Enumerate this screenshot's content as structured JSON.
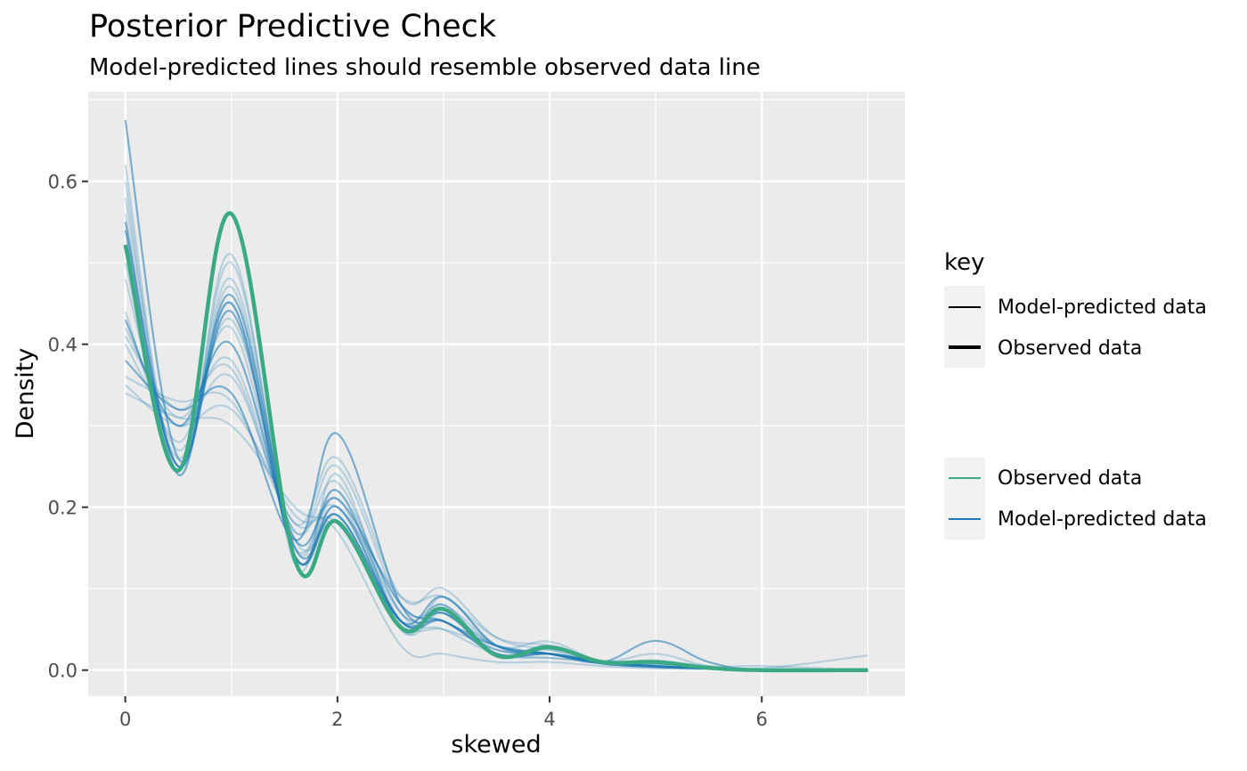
{
  "chart_data": {
    "type": "line",
    "title": "Posterior Predictive Check",
    "subtitle": "Model-predicted lines should resemble observed data line",
    "xlabel": "skewed",
    "ylabel": "Density",
    "xlim": [
      -0.35,
      7.35
    ],
    "ylim": [
      -0.032,
      0.71
    ],
    "x_ticks": [
      0,
      2,
      4,
      6
    ],
    "x_tick_labels": [
      "0",
      "2",
      "4",
      "6"
    ],
    "y_ticks": [
      0.0,
      0.2,
      0.4,
      0.6
    ],
    "y_tick_labels": [
      "0.0",
      "0.2",
      "0.4",
      "0.6"
    ],
    "grid": true,
    "legend_position": "right",
    "legend": {
      "linetype": {
        "title": "key",
        "items": [
          "Model-predicted data",
          "Observed data"
        ]
      },
      "colour": {
        "items": [
          "Observed data",
          "Model-predicted data"
        ]
      }
    },
    "colors": {
      "observed": "#3aaa85",
      "predicted": "#1b7ab5",
      "panel": "#ebebeb",
      "grid": "#ffffff"
    },
    "observed": {
      "name": "Observed data",
      "x": [
        0,
        0.5,
        1.0,
        1.6,
        2.0,
        2.6,
        3.0,
        3.5,
        4.0,
        4.5,
        5.0,
        5.5,
        6.0,
        7.0
      ],
      "y": [
        0.522,
        0.245,
        0.56,
        0.135,
        0.182,
        0.052,
        0.075,
        0.018,
        0.028,
        0.01,
        0.01,
        0.003,
        0.0,
        0.0
      ]
    },
    "predicted": {
      "name": "Model-predicted data",
      "x": [
        0,
        0.5,
        1.0,
        1.6,
        2.0,
        2.6,
        3.0,
        3.5,
        4.0,
        4.5,
        5.0,
        5.5,
        6.0,
        7.0
      ],
      "series": [
        {
          "y": [
            0.675,
            0.26,
            0.45,
            0.14,
            0.2,
            0.06,
            0.07,
            0.02,
            0.02,
            0.01,
            0.005,
            0.002,
            0.0,
            0.0
          ]
        },
        {
          "y": [
            0.6,
            0.24,
            0.51,
            0.13,
            0.24,
            0.05,
            0.09,
            0.03,
            0.035,
            0.01,
            0.008,
            0.003,
            0.0,
            0.0
          ]
        },
        {
          "y": [
            0.58,
            0.25,
            0.48,
            0.15,
            0.22,
            0.06,
            0.08,
            0.02,
            0.03,
            0.01,
            0.005,
            0.002,
            0.0,
            0.0
          ]
        },
        {
          "y": [
            0.56,
            0.24,
            0.47,
            0.14,
            0.21,
            0.05,
            0.07,
            0.02,
            0.025,
            0.01,
            0.004,
            0.002,
            0.0,
            0.0
          ]
        },
        {
          "y": [
            0.54,
            0.25,
            0.46,
            0.15,
            0.19,
            0.06,
            0.06,
            0.02,
            0.02,
            0.01,
            0.005,
            0.002,
            0.0,
            0.0
          ]
        },
        {
          "y": [
            0.5,
            0.26,
            0.45,
            0.14,
            0.2,
            0.07,
            0.06,
            0.02,
            0.015,
            0.01,
            0.005,
            0.002,
            0.0,
            0.0
          ]
        },
        {
          "y": [
            0.48,
            0.27,
            0.43,
            0.16,
            0.18,
            0.06,
            0.07,
            0.03,
            0.02,
            0.01,
            0.01,
            0.002,
            0.0,
            0.0
          ]
        },
        {
          "y": [
            0.44,
            0.28,
            0.42,
            0.15,
            0.22,
            0.07,
            0.05,
            0.02,
            0.015,
            0.01,
            0.005,
            0.002,
            0.0,
            0.0
          ]
        },
        {
          "y": [
            0.43,
            0.3,
            0.4,
            0.16,
            0.21,
            0.08,
            0.06,
            0.025,
            0.02,
            0.008,
            0.004,
            0.002,
            0.0,
            0.0
          ]
        },
        {
          "y": [
            0.42,
            0.31,
            0.38,
            0.17,
            0.25,
            0.08,
            0.07,
            0.03,
            0.02,
            0.01,
            0.01,
            0.003,
            0.0,
            0.0
          ]
        },
        {
          "y": [
            0.41,
            0.32,
            0.37,
            0.17,
            0.23,
            0.07,
            0.08,
            0.03,
            0.02,
            0.01,
            0.008,
            0.003,
            0.0,
            0.0
          ]
        },
        {
          "y": [
            0.4,
            0.3,
            0.36,
            0.18,
            0.26,
            0.09,
            0.1,
            0.04,
            0.025,
            0.01,
            0.02,
            0.005,
            0.005,
            0.0
          ]
        },
        {
          "y": [
            0.38,
            0.32,
            0.34,
            0.16,
            0.29,
            0.08,
            0.06,
            0.03,
            0.02,
            0.01,
            0.036,
            0.01,
            0.0,
            0.0
          ]
        },
        {
          "y": [
            0.36,
            0.33,
            0.33,
            0.18,
            0.2,
            0.09,
            0.09,
            0.04,
            0.03,
            0.01,
            0.012,
            0.004,
            0.002,
            0.018
          ]
        },
        {
          "y": [
            0.35,
            0.3,
            0.32,
            0.19,
            0.18,
            0.06,
            0.05,
            0.03,
            0.02,
            0.01,
            0.005,
            0.002,
            0.0,
            0.0
          ]
        },
        {
          "y": [
            0.34,
            0.31,
            0.3,
            0.2,
            0.17,
            0.03,
            0.02,
            0.01,
            0.01,
            0.005,
            0.002,
            0.001,
            0.0,
            0.0
          ]
        },
        {
          "y": [
            0.55,
            0.25,
            0.44,
            0.14,
            0.19,
            0.06,
            0.09,
            0.03,
            0.02,
            0.008,
            0.004,
            0.002,
            0.0,
            0.0
          ]
        },
        {
          "y": [
            0.62,
            0.24,
            0.5,
            0.14,
            0.22,
            0.055,
            0.08,
            0.02,
            0.03,
            0.01,
            0.006,
            0.002,
            0.0,
            0.0
          ]
        }
      ]
    }
  }
}
